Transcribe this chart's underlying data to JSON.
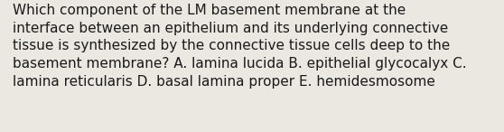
{
  "line1": "Which component of the LM basement membrane at the",
  "line2": "interface between an epithelium and its underlying connective",
  "line3": "tissue is synthesized by the connective tissue cells deep to the",
  "line4": "basement membrane? A. lamina lucida B. epithelial glycocalyx C.",
  "line5": "lamina reticularis D. basal lamina proper E. hemidesmosome",
  "background_color": "#eae8e1",
  "text_color": "#1a1a1a",
  "font_size": 11.0,
  "fig_width": 5.58,
  "fig_height": 1.46
}
